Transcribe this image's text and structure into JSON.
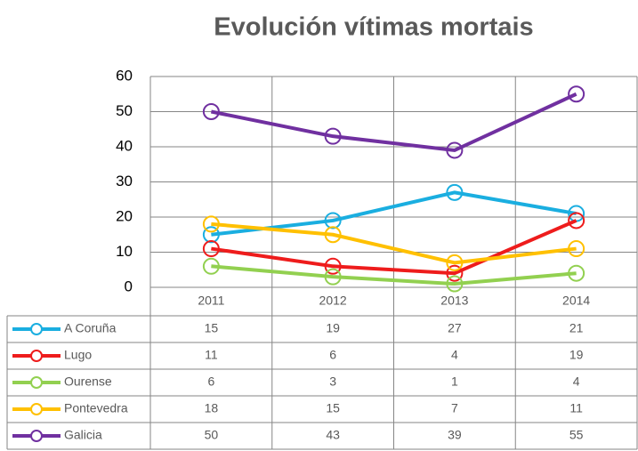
{
  "chart_data": {
    "type": "line",
    "title": "Evolución vítimas mortais",
    "categories": [
      "2011",
      "2012",
      "2013",
      "2014"
    ],
    "series": [
      {
        "name": "A Coruña",
        "color": "#1aaee0",
        "values": [
          15,
          19,
          27,
          21
        ]
      },
      {
        "name": "Lugo",
        "color": "#ee1c1c",
        "values": [
          11,
          6,
          4,
          19
        ]
      },
      {
        "name": "Ourense",
        "color": "#92d050",
        "values": [
          6,
          3,
          1,
          4
        ]
      },
      {
        "name": "Pontevedra",
        "color": "#ffc000",
        "values": [
          18,
          15,
          7,
          11
        ]
      },
      {
        "name": "Galicia",
        "color": "#7030a0",
        "values": [
          50,
          43,
          39,
          55
        ]
      }
    ],
    "ylim": [
      0,
      60
    ],
    "yticks": [
      0,
      10,
      20,
      30,
      40,
      50,
      60
    ],
    "grid": true,
    "data_table": true
  }
}
